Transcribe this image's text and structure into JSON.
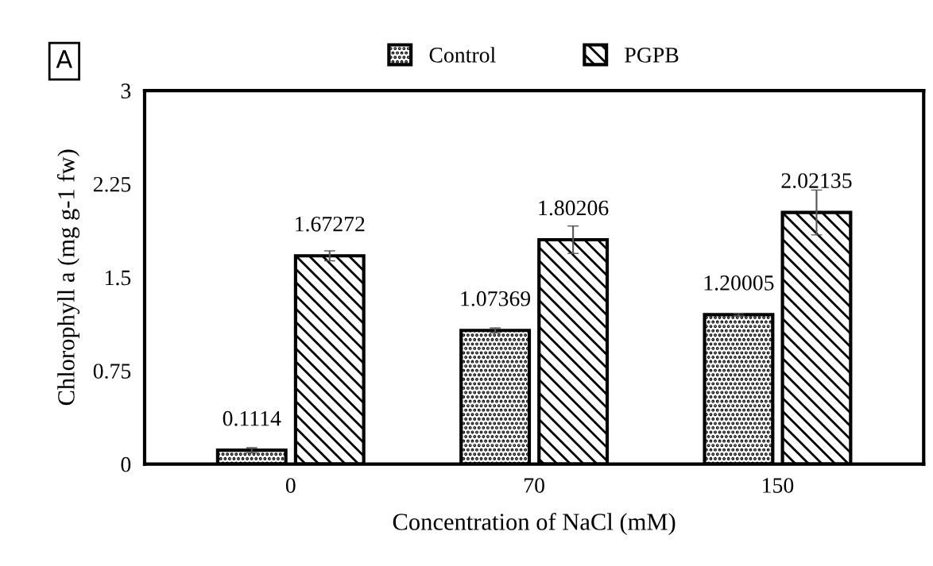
{
  "chart_data": {
    "type": "bar",
    "xlabel": "Concentration of NaCl (mM)",
    "ylabel": "Chlorophyll a (mg g-1 fw)",
    "categories": [
      "0",
      "70",
      "150"
    ],
    "series": [
      {
        "name": "Control",
        "color": "#ffffff",
        "values": [
          0.1114,
          1.07369,
          1.20005
        ],
        "errors": [
          0.02,
          0.02,
          0.01
        ]
      },
      {
        "name": "PGPB",
        "color": "#ffffff",
        "values": [
          1.67272,
          1.80206,
          2.02135
        ],
        "errors": [
          0.04,
          0.11,
          0.18
        ]
      }
    ],
    "ylim": [
      0,
      3
    ],
    "yticks": [
      0,
      0.75,
      1.5,
      2.25,
      3
    ],
    "grid": false,
    "legend": "top",
    "data_labels": true,
    "annotations": [
      "A"
    ]
  }
}
